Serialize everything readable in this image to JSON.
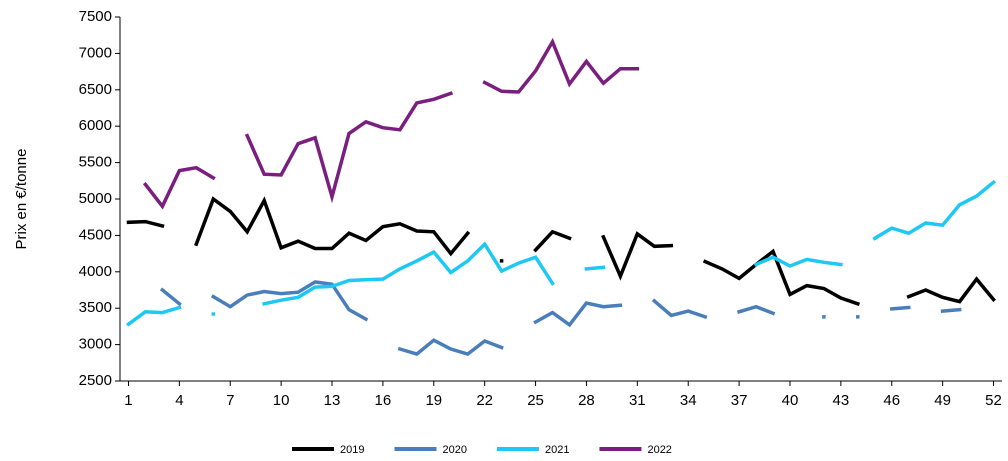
{
  "chart_data": {
    "type": "line",
    "y_label": "Prix en €/tonne",
    "x": [
      1,
      2,
      3,
      4,
      5,
      6,
      7,
      8,
      9,
      10,
      11,
      12,
      13,
      14,
      15,
      16,
      17,
      18,
      19,
      20,
      21,
      22,
      23,
      24,
      25,
      26,
      27,
      28,
      29,
      30,
      31,
      32,
      33,
      34,
      35,
      36,
      37,
      38,
      39,
      40,
      41,
      42,
      43,
      44,
      45,
      46,
      47,
      48,
      49,
      50,
      51,
      52
    ],
    "xlim": [
      0.5,
      52.5
    ],
    "xticks": [
      1,
      4,
      7,
      10,
      13,
      16,
      19,
      22,
      25,
      28,
      31,
      34,
      37,
      40,
      43,
      46,
      49,
      52
    ],
    "ylim": [
      2500,
      7500
    ],
    "yticks": [
      2500,
      3000,
      3500,
      4000,
      4500,
      5000,
      5500,
      6000,
      6500,
      7000,
      7500
    ],
    "series": [
      {
        "name": "2019",
        "color": "#000000",
        "values": [
          4680,
          4690,
          4630,
          null,
          4380,
          5000,
          4830,
          4550,
          4980,
          4330,
          4420,
          4320,
          4320,
          4530,
          4430,
          4620,
          4660,
          4560,
          4550,
          4250,
          4530,
          null,
          4150,
          null,
          4300,
          4550,
          4460,
          null,
          4480,
          3940,
          4520,
          4350,
          4360,
          null,
          4140,
          4040,
          3910,
          4100,
          4280,
          3690,
          3810,
          3770,
          3640,
          3560,
          null,
          null,
          3660,
          3750,
          3650,
          3590,
          3900,
          3620
        ]
      },
      {
        "name": "2020",
        "color": "#4a7ebb",
        "values": [
          null,
          null,
          3750,
          3560,
          null,
          3660,
          3520,
          3680,
          3730,
          3700,
          3720,
          3860,
          3830,
          3480,
          3350,
          null,
          2940,
          2870,
          3060,
          2940,
          2870,
          3050,
          2960,
          null,
          3310,
          3440,
          3270,
          3570,
          3520,
          3540,
          null,
          3600,
          3400,
          3460,
          3380,
          null,
          3450,
          3520,
          3430,
          null,
          null,
          3380,
          null,
          3380,
          null,
          3490,
          3510,
          null,
          3460,
          3480,
          null,
          null
        ]
      },
      {
        "name": "2021",
        "color": "#1ec8f5",
        "values": [
          3280,
          3450,
          3440,
          3510,
          null,
          3420,
          null,
          null,
          3560,
          3610,
          3650,
          3790,
          3800,
          3880,
          3890,
          3900,
          4040,
          4150,
          4270,
          3990,
          4150,
          4380,
          4010,
          4120,
          4200,
          3840,
          null,
          4040,
          4060,
          null,
          null,
          null,
          null,
          null,
          null,
          null,
          null,
          4100,
          4200,
          4080,
          4170,
          4130,
          4100,
          null,
          4460,
          4600,
          4530,
          4670,
          4640,
          4920,
          5040,
          5230
        ]
      },
      {
        "name": "2022",
        "color": "#7a1f7f",
        "values": [
          null,
          5200,
          4900,
          5390,
          5430,
          5290,
          null,
          5870,
          5340,
          5330,
          5760,
          5840,
          5030,
          5900,
          6060,
          5980,
          5950,
          6320,
          6370,
          6450,
          null,
          6600,
          6480,
          6470,
          6760,
          7160,
          6580,
          6890,
          6590,
          6790,
          6790,
          null,
          null,
          null,
          null,
          null,
          null,
          null,
          null,
          null,
          null,
          null,
          null,
          null,
          null,
          null,
          null,
          null,
          null,
          null,
          null,
          null
        ]
      }
    ]
  }
}
